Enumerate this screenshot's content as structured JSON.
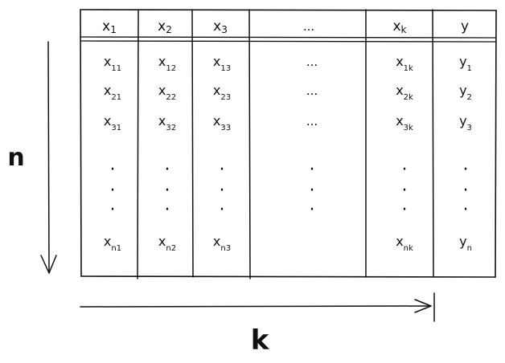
{
  "table": {
    "headers": [
      {
        "base": "x",
        "sub": "1"
      },
      {
        "base": "x",
        "sub": "2"
      },
      {
        "base": "x",
        "sub": "3"
      },
      {
        "base": "...",
        "sub": ""
      },
      {
        "base": "x",
        "sub": "k"
      },
      {
        "base": "y",
        "sub": ""
      }
    ],
    "rows": [
      [
        {
          "base": "x",
          "sub": "11"
        },
        {
          "base": "x",
          "sub": "12"
        },
        {
          "base": "x",
          "sub": "13"
        },
        {
          "base": "...",
          "sub": ""
        },
        {
          "base": "x",
          "sub": "1k"
        },
        {
          "base": "y",
          "sub": "1"
        }
      ],
      [
        {
          "base": "x",
          "sub": "21"
        },
        {
          "base": "x",
          "sub": "22"
        },
        {
          "base": "x",
          "sub": "23"
        },
        {
          "base": "...",
          "sub": ""
        },
        {
          "base": "x",
          "sub": "2k"
        },
        {
          "base": "y",
          "sub": "2"
        }
      ],
      [
        {
          "base": "x",
          "sub": "31"
        },
        {
          "base": "x",
          "sub": "32"
        },
        {
          "base": "x",
          "sub": "33"
        },
        {
          "base": "...",
          "sub": ""
        },
        {
          "base": "x",
          "sub": "3k"
        },
        {
          "base": "y",
          "sub": "3"
        }
      ],
      [
        {
          "base": "·",
          "sub": ""
        },
        {
          "base": "·",
          "sub": ""
        },
        {
          "base": "·",
          "sub": ""
        },
        {
          "base": "·",
          "sub": ""
        },
        {
          "base": "·",
          "sub": ""
        },
        {
          "base": "·",
          "sub": ""
        }
      ],
      [
        {
          "base": "·",
          "sub": ""
        },
        {
          "base": "·",
          "sub": ""
        },
        {
          "base": "·",
          "sub": ""
        },
        {
          "base": "·",
          "sub": ""
        },
        {
          "base": "·",
          "sub": ""
        },
        {
          "base": "·",
          "sub": ""
        }
      ],
      [
        {
          "base": "·",
          "sub": ""
        },
        {
          "base": "·",
          "sub": ""
        },
        {
          "base": "·",
          "sub": ""
        },
        {
          "base": "·",
          "sub": ""
        },
        {
          "base": "·",
          "sub": ""
        },
        {
          "base": "·",
          "sub": ""
        }
      ],
      [
        {
          "base": "x",
          "sub": "n1"
        },
        {
          "base": "x",
          "sub": "n2"
        },
        {
          "base": "x",
          "sub": "n3"
        },
        {
          "base": "",
          "sub": ""
        },
        {
          "base": "x",
          "sub": "nk"
        },
        {
          "base": "y",
          "sub": "n"
        }
      ]
    ]
  },
  "axes": {
    "rows_label": "n",
    "cols_label": "k"
  },
  "colors": {
    "ink": "#111111",
    "background": "#ffffff"
  }
}
